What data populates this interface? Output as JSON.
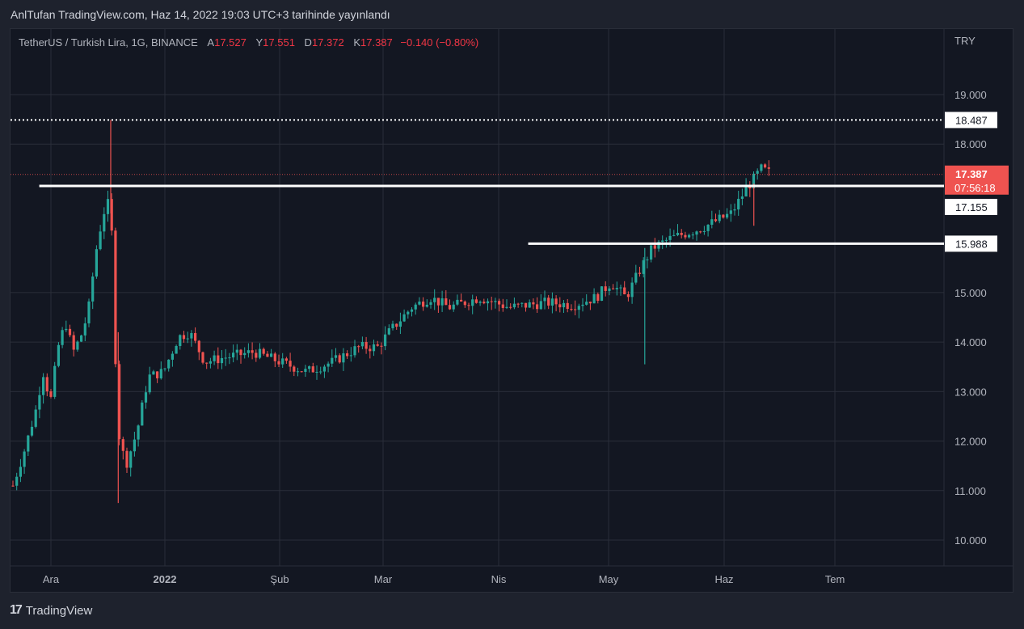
{
  "caption": "AnlTufan TradingView.com, Haz 14, 2022 19:03 UTC+3 tarihinde yayınlandı",
  "symbol": {
    "title": "TetherUS / Turkish Lira, 1G, BINANCE",
    "open_label": "A",
    "open": "17.527",
    "high_label": "Y",
    "high": "17.551",
    "low_label": "D",
    "low": "17.372",
    "close_label": "K",
    "close": "17.387",
    "change": "−0.140 (−0.80%)"
  },
  "currency": "TRY",
  "brand": "TradingView",
  "colors": {
    "up": "#26a69a",
    "down": "#ef5350",
    "background": "#131722",
    "grid": "#2a2e39",
    "hline": "#ffffff"
  },
  "chart_data": {
    "type": "candlestick",
    "y_axis": {
      "ticks": [
        "19.000",
        "18.000",
        "15.000",
        "14.000",
        "13.000",
        "12.000",
        "11.000",
        "10.000"
      ],
      "ylim": [
        9.6,
        20.1
      ]
    },
    "x_axis": {
      "ticks": [
        "Ara",
        "2022",
        "Şub",
        "Mar",
        "Nis",
        "May",
        "Haz",
        "Tem"
      ]
    },
    "price_labels": {
      "high_dotted": "18.487",
      "last_price": "17.387",
      "countdown": "07:56:18",
      "line_1": "17.155",
      "line_2": "15.988"
    },
    "horizontal_lines": [
      {
        "value": 18.487,
        "style": "dotted",
        "label": "18.487"
      },
      {
        "value": 17.155,
        "style": "solid",
        "label": "17.155",
        "from": "2021-12-01"
      },
      {
        "value": 15.988,
        "style": "solid",
        "label": "15.988",
        "from": "2022-04-10"
      }
    ],
    "close_series": [
      {
        "d": "2021-11-24",
        "c": 11.1
      },
      {
        "d": "2021-11-27",
        "c": 11.8
      },
      {
        "d": "2021-11-30",
        "c": 12.6
      },
      {
        "d": "2021-12-02",
        "c": 13.4
      },
      {
        "d": "2021-12-04",
        "c": 12.8
      },
      {
        "d": "2021-12-06",
        "c": 13.9
      },
      {
        "d": "2021-12-08",
        "c": 14.4
      },
      {
        "d": "2021-12-10",
        "c": 13.8
      },
      {
        "d": "2021-12-12",
        "c": 14.1
      },
      {
        "d": "2021-12-14",
        "c": 14.6
      },
      {
        "d": "2021-12-16",
        "c": 15.8
      },
      {
        "d": "2021-12-18",
        "c": 16.6
      },
      {
        "d": "2021-12-20",
        "c": 16.9
      },
      {
        "d": "2021-12-21",
        "c": 14.2
      },
      {
        "d": "2021-12-22",
        "c": 12.2
      },
      {
        "d": "2021-12-24",
        "c": 11.5
      },
      {
        "d": "2021-12-27",
        "c": 12.2
      },
      {
        "d": "2021-12-30",
        "c": 13.3
      },
      {
        "d": "2022-01-03",
        "c": 13.4
      },
      {
        "d": "2022-01-07",
        "c": 14.1
      },
      {
        "d": "2022-01-10",
        "c": 14.2
      },
      {
        "d": "2022-01-14",
        "c": 13.6
      },
      {
        "d": "2022-01-20",
        "c": 13.7
      },
      {
        "d": "2022-01-27",
        "c": 13.8
      },
      {
        "d": "2022-02-03",
        "c": 13.6
      },
      {
        "d": "2022-02-10",
        "c": 13.4
      },
      {
        "d": "2022-02-17",
        "c": 13.6
      },
      {
        "d": "2022-02-24",
        "c": 13.9
      },
      {
        "d": "2022-03-01",
        "c": 13.9
      },
      {
        "d": "2022-03-04",
        "c": 14.2
      },
      {
        "d": "2022-03-10",
        "c": 14.7
      },
      {
        "d": "2022-03-15",
        "c": 14.9
      },
      {
        "d": "2022-03-20",
        "c": 14.7
      },
      {
        "d": "2022-03-28",
        "c": 14.9
      },
      {
        "d": "2022-04-05",
        "c": 14.7
      },
      {
        "d": "2022-04-15",
        "c": 14.8
      },
      {
        "d": "2022-04-22",
        "c": 14.75
      },
      {
        "d": "2022-04-28",
        "c": 14.9
      },
      {
        "d": "2022-05-02",
        "c": 15.2
      },
      {
        "d": "2022-05-06",
        "c": 14.9
      },
      {
        "d": "2022-05-10",
        "c": 15.5
      },
      {
        "d": "2022-05-13",
        "c": 15.9
      },
      {
        "d": "2022-05-18",
        "c": 16.1
      },
      {
        "d": "2022-05-22",
        "c": 16.2
      },
      {
        "d": "2022-05-26",
        "c": 16.3
      },
      {
        "d": "2022-05-30",
        "c": 16.45
      },
      {
        "d": "2022-06-03",
        "c": 16.6
      },
      {
        "d": "2022-06-07",
        "c": 17.1
      },
      {
        "d": "2022-06-11",
        "c": 17.5
      },
      {
        "d": "2022-06-14",
        "c": 17.387
      }
    ]
  }
}
